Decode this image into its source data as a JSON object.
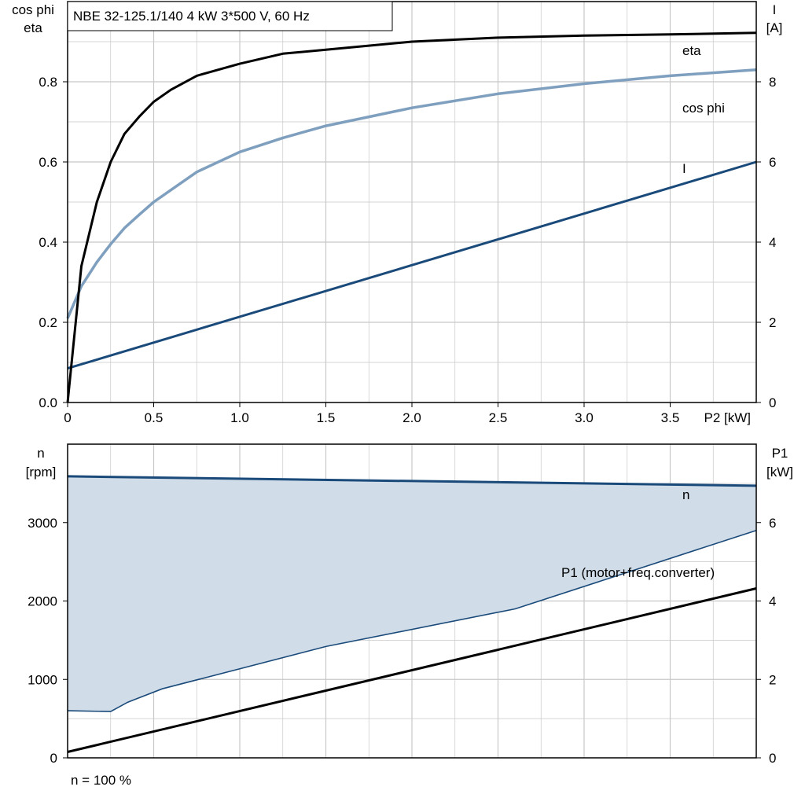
{
  "colors": {
    "eta": "#000000",
    "cosphi": "#7f9fbf",
    "current": "#1a4a7a",
    "speed": "#1a4a7a",
    "envelope_fill": "#d0dce8",
    "p1": "#000000",
    "grid": "#c8c8c8"
  },
  "chart_data": [
    {
      "type": "line",
      "title": "NBE 32-125.1/140   4 kW   3*500 V, 60 Hz",
      "xlabel": "P2 [kW]",
      "ylabel_left_line1": "cos phi",
      "ylabel_left_line2": "eta",
      "ylabel_right_line1": "I",
      "ylabel_right_line2": "[A]",
      "xlim": [
        0,
        4
      ],
      "ylim_left": [
        0,
        1.0
      ],
      "ylim_right": [
        0,
        10
      ],
      "x_ticks": [
        "0",
        "0.5",
        "1.0",
        "1.5",
        "2.0",
        "2.5",
        "3.0",
        "3.5"
      ],
      "x_tick_values": [
        0,
        0.5,
        1.0,
        1.5,
        2.0,
        2.5,
        3.0,
        3.5
      ],
      "y_left_ticks": [
        "0.0",
        "0.2",
        "0.4",
        "0.6",
        "0.8"
      ],
      "y_left_tick_values": [
        0,
        0.2,
        0.4,
        0.6,
        0.8
      ],
      "y_right_ticks": [
        "0",
        "2",
        "4",
        "6",
        "8"
      ],
      "y_right_tick_values": [
        0,
        2,
        4,
        6,
        8
      ],
      "grid": true,
      "series": [
        {
          "name": "eta",
          "axis": "left",
          "x": [
            0,
            0.08,
            0.17,
            0.25,
            0.33,
            0.42,
            0.5,
            0.6,
            0.75,
            1.0,
            1.25,
            1.5,
            2.0,
            2.5,
            3.0,
            3.5,
            4.0
          ],
          "y": [
            0,
            0.34,
            0.5,
            0.6,
            0.67,
            0.715,
            0.75,
            0.78,
            0.815,
            0.845,
            0.87,
            0.88,
            0.9,
            0.91,
            0.915,
            0.918,
            0.922
          ]
        },
        {
          "name": "cos phi",
          "axis": "left",
          "x": [
            0,
            0.08,
            0.17,
            0.25,
            0.33,
            0.42,
            0.5,
            0.6,
            0.75,
            1.0,
            1.25,
            1.5,
            2.0,
            2.5,
            3.0,
            3.5,
            4.0
          ],
          "y": [
            0.21,
            0.29,
            0.35,
            0.395,
            0.435,
            0.47,
            0.5,
            0.53,
            0.575,
            0.625,
            0.66,
            0.69,
            0.735,
            0.77,
            0.795,
            0.815,
            0.83
          ]
        },
        {
          "name": "I",
          "axis": "right",
          "x": [
            0,
            4.0
          ],
          "y": [
            0.85,
            6.0
          ]
        }
      ]
    },
    {
      "type": "line",
      "xlabel": "",
      "ylabel_left_line1": "n",
      "ylabel_left_line2": "[rpm]",
      "ylabel_right_line1": "P1",
      "ylabel_right_line2": "[kW]",
      "xlim": [
        0,
        4
      ],
      "ylim_left": [
        0,
        4000
      ],
      "ylim_right": [
        0,
        8
      ],
      "y_left_ticks": [
        "0",
        "1000",
        "2000",
        "3000"
      ],
      "y_left_tick_values": [
        0,
        1000,
        2000,
        3000
      ],
      "y_right_ticks": [
        "0",
        "2",
        "4",
        "6"
      ],
      "y_right_tick_values": [
        0,
        2,
        4,
        6
      ],
      "grid": true,
      "footnote": "n = 100 %",
      "series": [
        {
          "name": "n",
          "axis": "left",
          "x": [
            0,
            4.0
          ],
          "y": [
            3590,
            3470
          ]
        },
        {
          "name": "P1 (motor+freq.converter)",
          "axis": "right",
          "x": [
            0,
            4.0
          ],
          "y": [
            0.15,
            4.32
          ]
        }
      ],
      "envelope_lower": {
        "axis": "left",
        "x": [
          0,
          0.25,
          0.35,
          0.55,
          1.5,
          2.6,
          4.0
        ],
        "y": [
          600,
          590,
          710,
          880,
          1420,
          1900,
          2900
        ]
      }
    }
  ]
}
